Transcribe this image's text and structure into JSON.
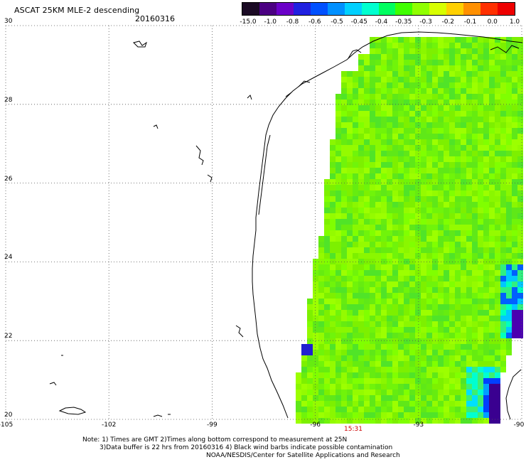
{
  "header": {
    "title": "ASCAT 25KM MLE-2 descending",
    "date": "20160316"
  },
  "colorbar": {
    "labels": [
      "-15.0",
      "-1.0",
      "-0.8",
      "-0.6",
      "-0.5",
      "-0.45",
      "-0.4",
      "-0.35",
      "-0.3",
      "-0.2",
      "-0.1",
      "0.0",
      "1.0"
    ],
    "colors": [
      "#1a0a24",
      "#4b0082",
      "#6a00c8",
      "#2020e0",
      "#0050ff",
      "#0090ff",
      "#00d0ff",
      "#00ffd0",
      "#00ff60",
      "#40ff00",
      "#90ff00",
      "#d8ff00",
      "#ffd000",
      "#ff9000",
      "#ff3000",
      "#ee0000"
    ]
  },
  "axes": {
    "lat_labels": [
      "30",
      "28",
      "26",
      "24",
      "22",
      "20"
    ],
    "lon_labels": [
      "-105",
      "-102",
      "-99",
      "-96",
      "-93",
      "-90"
    ]
  },
  "time_label": "15:31",
  "notes": {
    "line1": "Note: 1) Times are GMT 2)Times along bottom correspond to measurement at 25N",
    "line2": "3)Data buffer is 22 hrs from 20160316 4) Black wind barbs indicate possible contamination",
    "line3": "NOAA/NESDIS/Center for Satellite Applications and Research"
  }
}
